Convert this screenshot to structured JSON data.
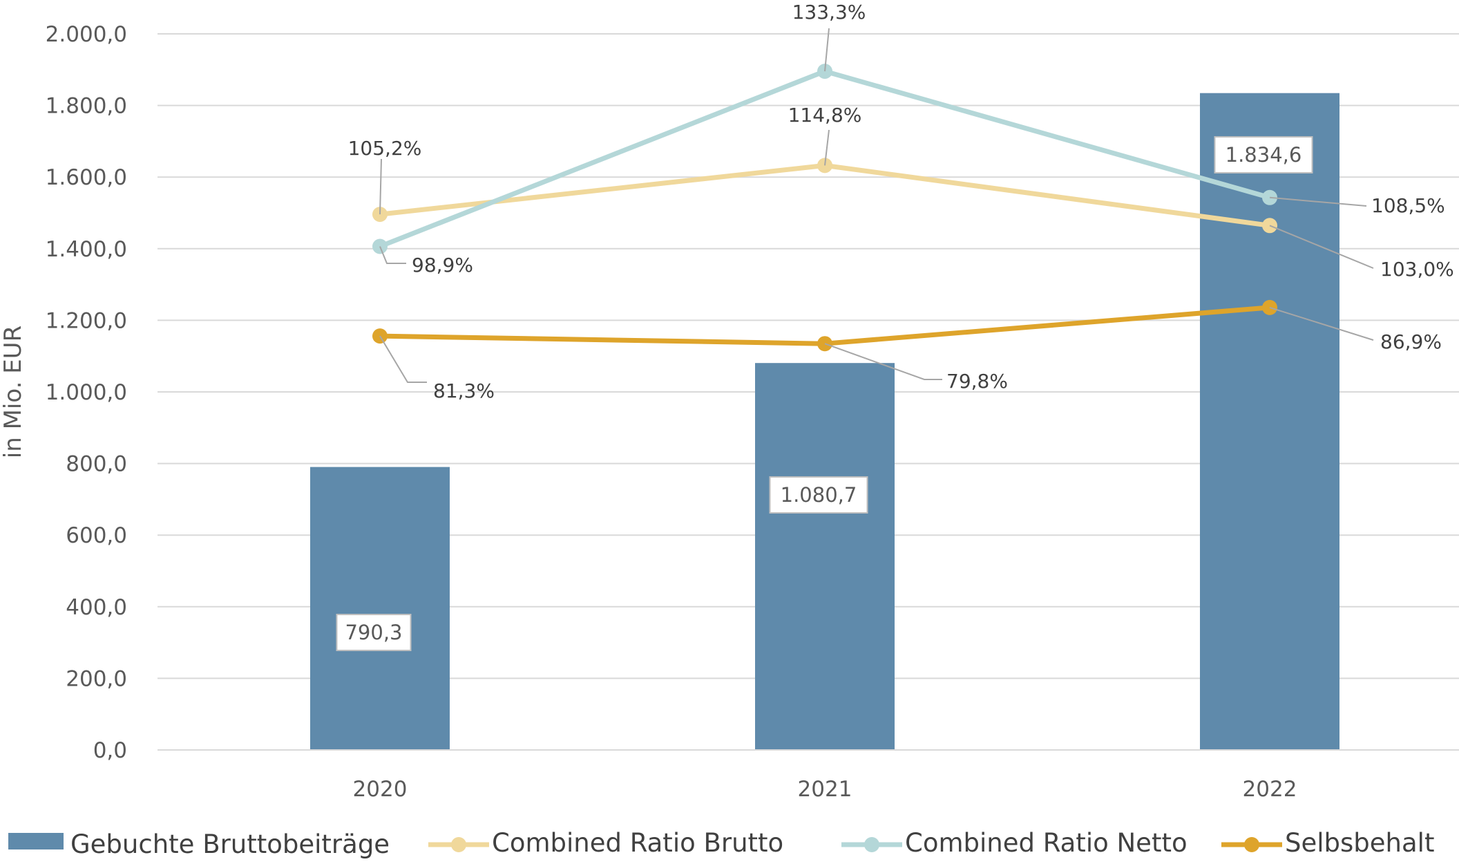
{
  "chart_data": {
    "type": "bar",
    "categories": [
      "2020",
      "2021",
      "2022"
    ],
    "ylabel": "in Mio. EUR",
    "ylim": [
      0,
      2000
    ],
    "y_ticks": [
      "0,0",
      "200,0",
      "400,0",
      "600,0",
      "800,0",
      "1.000,0",
      "1.200,0",
      "1.400,0",
      "1.600,0",
      "1.800,0",
      "2.000,0"
    ],
    "grid": true,
    "legend_position": "bottom",
    "series": [
      {
        "name": "Gebuchte Bruttobeiträge",
        "kind": "bar",
        "color": "#5f8aab",
        "values": [
          790.3,
          1080.7,
          1834.6
        ],
        "labels": [
          "790,3",
          "1.080,7",
          "1.834,6"
        ]
      },
      {
        "name": "Combined Ratio Brutto",
        "kind": "line",
        "color": "#f0d89b",
        "values": [
          105.2,
          114.8,
          103.0
        ],
        "labels": [
          "105,2%",
          "114,8%",
          "103,0%"
        ]
      },
      {
        "name": "Combined Ratio Netto",
        "kind": "line",
        "color": "#b4d7d8",
        "values": [
          98.9,
          133.3,
          108.5
        ],
        "labels": [
          "98,9%",
          "133,3%",
          "108,5%"
        ]
      },
      {
        "name": "Selbsbehalt",
        "kind": "line",
        "color": "#dea42b",
        "values": [
          81.3,
          79.8,
          86.9
        ],
        "labels": [
          "81,3%",
          "79,8%",
          "86,9%"
        ]
      }
    ]
  }
}
